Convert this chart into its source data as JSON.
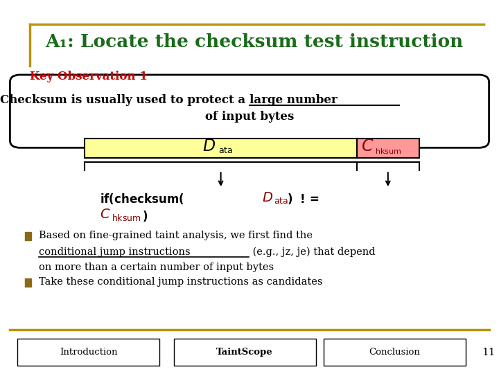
{
  "title": "A₁: Locate the checksum test instruction",
  "title_color": "#1a6b1a",
  "title_border_color": "#b8960c",
  "bg_color": "#ffffff",
  "key_obs_label": "Key Observation 1",
  "key_obs_color": "#cc0000",
  "data_bar_color": "#ffff99",
  "chksum_bar_color": "#ff9999",
  "bullet2": "Take these conditional jump instructions as candidates",
  "footer_items": [
    "Introduction",
    "TaintScope",
    "Conclusion"
  ],
  "page_num": "11",
  "bullet_square_color": "#8b6914"
}
